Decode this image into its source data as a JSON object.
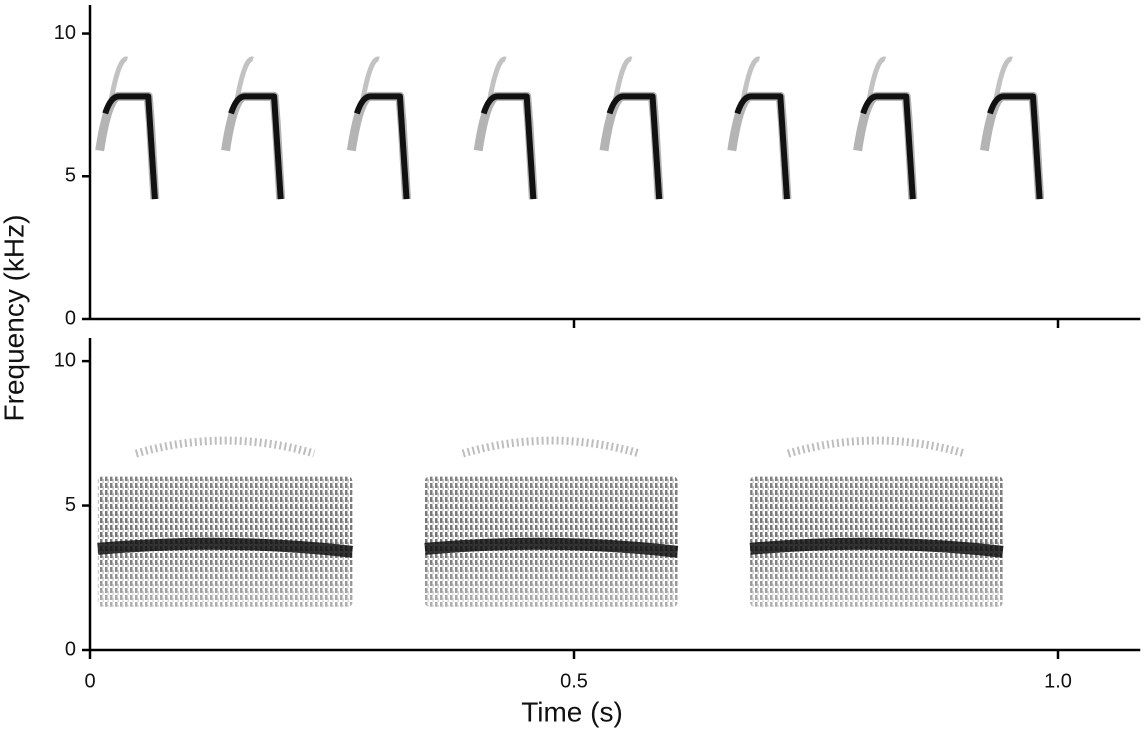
{
  "chart_data": [
    {
      "type": "spectrogram",
      "ylabel": "Frequency (kHz)",
      "xlim": [
        0,
        1.085
      ],
      "ylim": [
        0,
        11
      ],
      "yticks": [
        0,
        5,
        10
      ],
      "xticks": [
        0.5,
        {
          "value": 1,
          "label": "1.0"
        }
      ],
      "color": "#111111",
      "syllables": {
        "start": [
          0.01,
          0.14,
          0.27,
          0.401,
          0.531,
          0.663,
          0.793,
          0.924
        ],
        "end": [
          0.067,
          0.197,
          0.327,
          0.458,
          0.588,
          0.72,
          0.85,
          0.981
        ],
        "onset_khz": [
          5.9,
          5.9,
          5.9,
          5.9,
          5.9,
          5.9,
          5.9,
          5.9
        ],
        "peak_khz": [
          7.8,
          7.8,
          7.8,
          7.8,
          7.8,
          7.8,
          7.8,
          7.8
        ],
        "min_khz": [
          4.2,
          4.2,
          4.2,
          4.2,
          4.2,
          4.2,
          4.2,
          4.2
        ],
        "max_khz": [
          9.2,
          9.2,
          9.2,
          9.2,
          9.2,
          9.2,
          9.2,
          9.2
        ]
      }
    },
    {
      "type": "spectrogram-band",
      "xlabel": "Time (s)",
      "xlim": [
        0,
        1.085
      ],
      "ylim": [
        0,
        10.8
      ],
      "yticks": [
        0,
        5,
        10
      ],
      "xticks": [
        0,
        0.5,
        {
          "value": 1,
          "label": "1.0"
        }
      ],
      "color": "#111111",
      "syllables": {
        "start": [
          0.008,
          0.346,
          0.682
        ],
        "end": [
          0.271,
          0.607,
          0.943
        ],
        "min_khz": [
          1.5,
          1.5,
          1.5
        ],
        "max_khz": [
          6.0,
          6.0,
          6.0
        ],
        "dominant_khz": [
          3.6,
          3.6,
          3.6
        ],
        "harmonic_khz": [
          7.2,
          7.2,
          7.2
        ]
      }
    }
  ]
}
